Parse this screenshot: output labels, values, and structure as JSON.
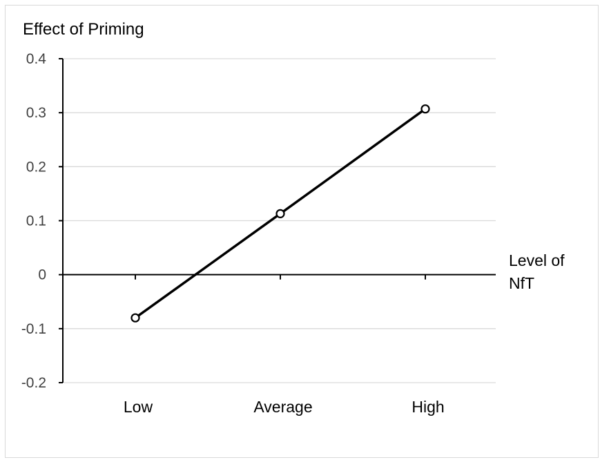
{
  "chart_data": {
    "type": "line",
    "title": "",
    "ylabel": "Effect of Priming",
    "xlabel": [
      "Level of",
      "NfT"
    ],
    "categories": [
      "Low",
      "Average",
      "High"
    ],
    "series": [
      {
        "values": [
          -0.08,
          0.113,
          0.307
        ],
        "color": "#000000",
        "marker": "open-circle"
      }
    ],
    "ylim": [
      -0.2,
      0.4
    ],
    "yticks": [
      0.4,
      0.3,
      0.2,
      0.1,
      0,
      -0.1,
      -0.2
    ],
    "ytick_labels": [
      "0.4",
      "0.3",
      "0.2",
      "0.1",
      "0",
      "-0.1",
      "-0.2"
    ],
    "grid": true,
    "gridline_color": "#d9d9d9",
    "legend": "none"
  }
}
